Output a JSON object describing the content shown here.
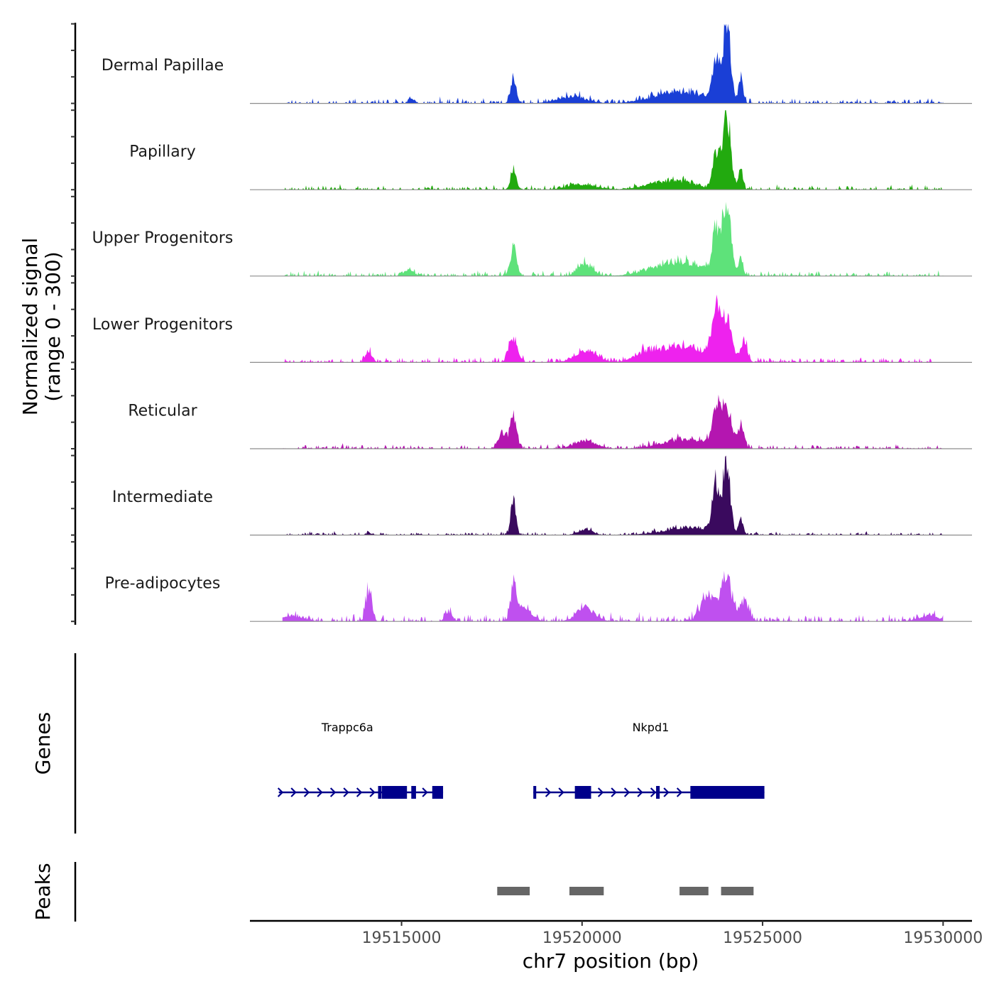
{
  "chart_data": {
    "type": "area",
    "title": "",
    "ylabel_line1": "Normalized signal",
    "ylabel_line2": "(range 0 - 300)",
    "ylim": [
      0,
      300
    ],
    "xlabel": "chr7 position (bp)",
    "xlim": [
      19510800,
      19530800
    ],
    "xticks": [
      19515000,
      19520000,
      19525000,
      19530000
    ],
    "xtick_labels": [
      "19515000",
      "19520000",
      "19525000",
      "19530000"
    ],
    "signal_range": [
      19511700,
      19530000
    ],
    "tracks": [
      {
        "name": "Dermal Papillae",
        "color": "#1a3fd6",
        "peaks": [
          [
            19518100,
            90,
            80
          ],
          [
            19522700,
            45,
            700
          ],
          [
            19523700,
            150,
            90
          ],
          [
            19524000,
            300,
            110
          ],
          [
            19524400,
            100,
            60
          ],
          [
            19519700,
            25,
            400
          ],
          [
            19515300,
            18,
            70
          ]
        ],
        "noise": 14,
        "seed": 11
      },
      {
        "name": "Papillary",
        "color": "#22aa0f",
        "peaks": [
          [
            19518100,
            80,
            80
          ],
          [
            19522500,
            35,
            600
          ],
          [
            19523700,
            140,
            90
          ],
          [
            19524000,
            300,
            110
          ],
          [
            19524400,
            80,
            60
          ],
          [
            19520000,
            18,
            400
          ]
        ],
        "noise": 12,
        "seed": 23
      },
      {
        "name": "Upper Progenitors",
        "color": "#5ee27a",
        "peaks": [
          [
            19518100,
            110,
            90
          ],
          [
            19520100,
            45,
            200
          ],
          [
            19515200,
            25,
            120
          ],
          [
            19522700,
            55,
            700
          ],
          [
            19523700,
            160,
            90
          ],
          [
            19524000,
            300,
            120
          ],
          [
            19524400,
            70,
            60
          ]
        ],
        "noise": 14,
        "seed": 37
      },
      {
        "name": "Lower Progenitors",
        "color": "#ee22ee",
        "peaks": [
          [
            19518100,
            90,
            120
          ],
          [
            19520100,
            45,
            300
          ],
          [
            19514100,
            40,
            90
          ],
          [
            19522800,
            60,
            700
          ],
          [
            19523700,
            150,
            120
          ],
          [
            19524000,
            140,
            150
          ],
          [
            19524500,
            80,
            80
          ],
          [
            19521800,
            25,
            300
          ]
        ],
        "noise": 14,
        "seed": 41
      },
      {
        "name": "Reticular",
        "color": "#b416b0",
        "peaks": [
          [
            19517800,
            60,
            120
          ],
          [
            19518100,
            120,
            90
          ],
          [
            19520100,
            30,
            300
          ],
          [
            19522800,
            35,
            600
          ],
          [
            19523700,
            140,
            110
          ],
          [
            19524000,
            150,
            140
          ],
          [
            19524400,
            90,
            80
          ]
        ],
        "noise": 12,
        "seed": 53
      },
      {
        "name": "Intermediate",
        "color": "#3a0a5e",
        "peaks": [
          [
            19518100,
            130,
            70
          ],
          [
            19520100,
            20,
            200
          ],
          [
            19523000,
            30,
            700
          ],
          [
            19523700,
            180,
            90
          ],
          [
            19524000,
            270,
            100
          ],
          [
            19524400,
            60,
            60
          ],
          [
            19514100,
            10,
            60
          ]
        ],
        "noise": 9,
        "seed": 67
      },
      {
        "name": "Pre-adipocytes",
        "color": "#bf50ef",
        "peaks": [
          [
            19514100,
            130,
            80
          ],
          [
            19518100,
            120,
            80
          ],
          [
            19518400,
            50,
            200
          ],
          [
            19516300,
            40,
            90
          ],
          [
            19520100,
            50,
            250
          ],
          [
            19523500,
            100,
            200
          ],
          [
            19524000,
            170,
            140
          ],
          [
            19524500,
            80,
            120
          ],
          [
            19512000,
            20,
            300
          ],
          [
            19529600,
            20,
            300
          ]
        ],
        "noise": 20,
        "seed": 79
      }
    ],
    "genes": [
      {
        "name": "Trappc6a",
        "start": 19511600,
        "end": 19516150,
        "strand": "+",
        "exons": [
          [
            19514350,
            19514440
          ],
          [
            19514450,
            19515150
          ],
          [
            19515270,
            19515400
          ],
          [
            19515850,
            19516150
          ]
        ],
        "label_x": 19513500
      },
      {
        "name": "Nkpd1",
        "start": 19518650,
        "end": 19525050,
        "strand": "+",
        "exons": [
          [
            19518650,
            19518730
          ],
          [
            19519800,
            19520250
          ],
          [
            19522050,
            19522150
          ],
          [
            19523000,
            19525050
          ]
        ],
        "label_x": 19521900
      }
    ],
    "genes_track_label": "Genes",
    "peaks_track_label": "Peaks",
    "peak_regions": [
      [
        19517650,
        19518550
      ],
      [
        19519650,
        19520600
      ],
      [
        19522700,
        19523500
      ],
      [
        19523850,
        19524750
      ]
    ],
    "peak_color": "#666666",
    "gene_color": "#00008b"
  }
}
